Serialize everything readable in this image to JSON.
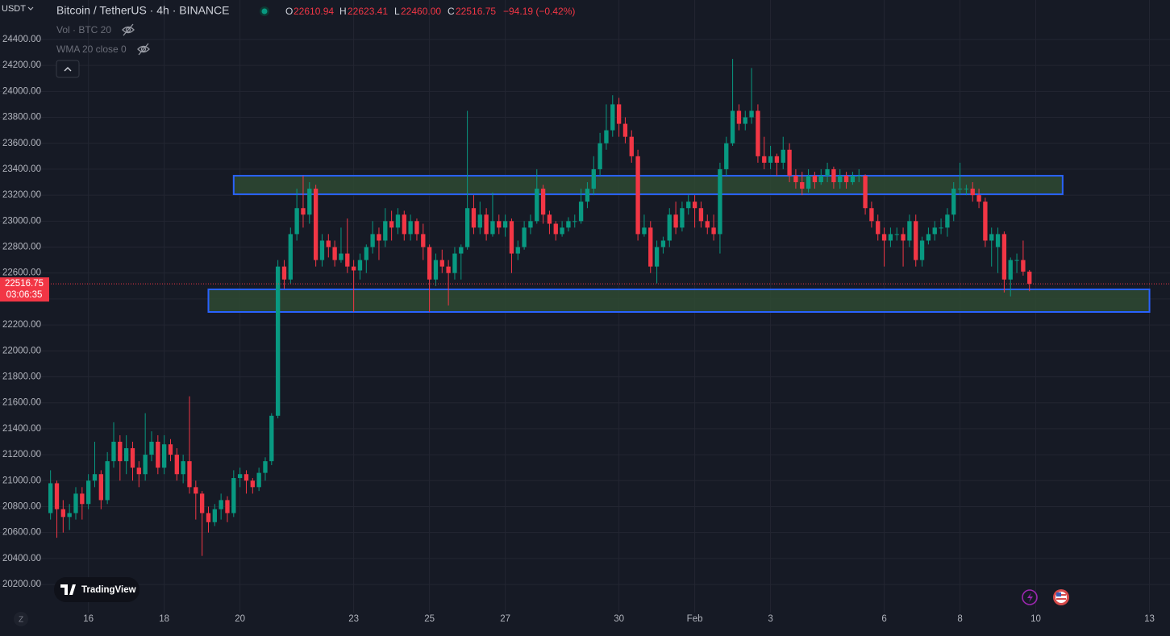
{
  "chart_data": {
    "type": "candlestick",
    "title": "Bitcoin / TetherUS · 4h · BINANCE",
    "symbol_menu": "USDT",
    "ohlc_header": [
      {
        "label": "O",
        "value": "22610.94"
      },
      {
        "label": "H",
        "value": "22623.41"
      },
      {
        "label": "L",
        "value": "22460.00"
      },
      {
        "label": "C",
        "value": "22516.75"
      }
    ],
    "change": "−94.19 (−0.42%)",
    "indicators": [
      "Vol · BTC 20",
      "WMA 20 close 0"
    ],
    "last_price_label": "22516.75",
    "countdown": "03:06:35",
    "watermark": "TradingView",
    "axis_button": "Z",
    "up_color": "#089981",
    "down_color": "#f23645",
    "zone_fill": "#2e4a32",
    "zone_stroke": "#2962ff",
    "grid": true,
    "xlim": [
      304,
      1045
    ],
    "ylim": [
      19983,
      24704
    ],
    "xticks": [
      {
        "value": 360,
        "label": "16"
      },
      {
        "value": 408,
        "label": "18"
      },
      {
        "value": 456,
        "label": "20"
      },
      {
        "value": 528,
        "label": "23"
      },
      {
        "value": 576,
        "label": "25"
      },
      {
        "value": 624,
        "label": "27"
      },
      {
        "value": 696,
        "label": "30"
      },
      {
        "value": 744,
        "label": "Feb"
      },
      {
        "value": 792,
        "label": "3"
      },
      {
        "value": 864,
        "label": "6"
      },
      {
        "value": 912,
        "label": "8"
      },
      {
        "value": 960,
        "label": "10"
      },
      {
        "value": 1032,
        "label": "13"
      }
    ],
    "yticks": [
      {
        "value": 20200,
        "label": "20200.00"
      },
      {
        "value": 20400,
        "label": "20400.00"
      },
      {
        "value": 20600,
        "label": "20600.00"
      },
      {
        "value": 20800,
        "label": "20800.00"
      },
      {
        "value": 21000,
        "label": "21000.00"
      },
      {
        "value": 21200,
        "label": "21200.00"
      },
      {
        "value": 21400,
        "label": "21400.00"
      },
      {
        "value": 21600,
        "label": "21600.00"
      },
      {
        "value": 21800,
        "label": "21800.00"
      },
      {
        "value": 22000,
        "label": "22000.00"
      },
      {
        "value": 22200,
        "label": "22200.00"
      },
      {
        "value": 22400,
        "label": "22400.00"
      },
      {
        "value": 22600,
        "label": "22600.00"
      },
      {
        "value": 22800,
        "label": "22800.00"
      },
      {
        "value": 23000,
        "label": "23000.00"
      },
      {
        "value": 23200,
        "label": "23200.00"
      },
      {
        "value": 23400,
        "label": "23400.00"
      },
      {
        "value": 23600,
        "label": "23600.00"
      },
      {
        "value": 23800,
        "label": "23800.00"
      },
      {
        "value": 24000,
        "label": "24000.00"
      },
      {
        "value": 24200,
        "label": "24200.00"
      },
      {
        "value": 24400,
        "label": "24400.00"
      }
    ],
    "zones": [
      {
        "x": [
          452,
          977
        ],
        "y": [
          23207,
          23350
        ]
      },
      {
        "x": [
          436,
          1032
        ],
        "y": [
          22300,
          22474
        ]
      }
    ],
    "x": [
      336,
      340,
      344,
      348,
      352,
      356,
      360,
      364,
      368,
      372,
      376,
      380,
      384,
      388,
      392,
      396,
      400,
      404,
      408,
      412,
      416,
      420,
      424,
      428,
      432,
      436,
      440,
      444,
      448,
      452,
      456,
      460,
      464,
      468,
      472,
      476,
      480,
      484,
      488,
      492,
      496,
      500,
      504,
      508,
      512,
      516,
      520,
      524,
      528,
      532,
      536,
      540,
      544,
      548,
      552,
      556,
      560,
      564,
      568,
      572,
      576,
      580,
      584,
      588,
      592,
      596,
      600,
      604,
      608,
      612,
      616,
      620,
      624,
      628,
      632,
      636,
      640,
      644,
      648,
      652,
      656,
      660,
      664,
      668,
      672,
      676,
      680,
      684,
      688,
      692,
      696,
      700,
      704,
      708,
      712,
      716,
      720,
      724,
      728,
      732,
      736,
      740,
      744,
      748,
      752,
      756,
      760,
      764,
      768,
      772,
      776,
      780,
      784,
      788,
      792,
      796,
      800,
      804,
      808,
      812,
      816,
      820,
      824,
      828,
      832,
      836,
      840,
      844,
      848,
      852,
      856,
      860,
      864,
      868,
      872,
      876,
      880,
      884,
      888,
      892,
      896,
      900,
      904,
      908,
      912,
      916,
      920,
      924,
      928,
      932,
      936,
      940,
      944,
      948,
      952,
      956
    ],
    "ohlc": [
      [
        20750,
        21080,
        20700,
        20980
      ],
      [
        20980,
        21000,
        20560,
        20780
      ],
      [
        20780,
        20850,
        20600,
        20720
      ],
      [
        20720,
        20820,
        20620,
        20750
      ],
      [
        20750,
        20950,
        20700,
        20900
      ],
      [
        20900,
        20950,
        20700,
        20820
      ],
      [
        20820,
        21050,
        20780,
        21000
      ],
      [
        21000,
        21300,
        20950,
        21050
      ],
      [
        21050,
        21080,
        20780,
        20850
      ],
      [
        20850,
        21220,
        20820,
        21150
      ],
      [
        21150,
        21450,
        21100,
        21300
      ],
      [
        21300,
        21350,
        21000,
        21150
      ],
      [
        21150,
        21350,
        21050,
        21250
      ],
      [
        21250,
        21300,
        21000,
        21100
      ],
      [
        21100,
        21150,
        20950,
        21050
      ],
      [
        21050,
        21520,
        21000,
        21200
      ],
      [
        21200,
        21380,
        21150,
        21300
      ],
      [
        21300,
        21350,
        21050,
        21100
      ],
      [
        21100,
        21350,
        21050,
        21280
      ],
      [
        21280,
        21320,
        21150,
        21200
      ],
      [
        21200,
        21250,
        21000,
        21050
      ],
      [
        21050,
        21200,
        20980,
        21150
      ],
      [
        21150,
        21650,
        20900,
        20950
      ],
      [
        20950,
        21000,
        20700,
        20900
      ],
      [
        20900,
        20920,
        20420,
        20750
      ],
      [
        20750,
        20800,
        20600,
        20680
      ],
      [
        20680,
        20820,
        20650,
        20780
      ],
      [
        20780,
        20900,
        20700,
        20850
      ],
      [
        20850,
        20880,
        20680,
        20750
      ],
      [
        20750,
        21080,
        20720,
        21020
      ],
      [
        21020,
        21100,
        20950,
        21050
      ],
      [
        21050,
        21080,
        20900,
        21000
      ],
      [
        21000,
        21020,
        20900,
        20950
      ],
      [
        20950,
        21100,
        20920,
        21060
      ],
      [
        21060,
        21180,
        21000,
        21150
      ],
      [
        21150,
        21520,
        21120,
        21500
      ],
      [
        21500,
        22700,
        21480,
        22650
      ],
      [
        22650,
        22700,
        22480,
        22550
      ],
      [
        22550,
        22950,
        22520,
        22900
      ],
      [
        22900,
        23250,
        22850,
        23100
      ],
      [
        23100,
        23350,
        22950,
        23050
      ],
      [
        23050,
        23300,
        22980,
        23250
      ],
      [
        23250,
        23280,
        22650,
        22700
      ],
      [
        22700,
        22900,
        22650,
        22850
      ],
      [
        22850,
        22900,
        22720,
        22800
      ],
      [
        22800,
        22850,
        22650,
        22700
      ],
      [
        22700,
        22950,
        22680,
        22750
      ],
      [
        22750,
        23020,
        22600,
        22650
      ],
      [
        22650,
        22700,
        22300,
        22620
      ],
      [
        22620,
        22750,
        22550,
        22700
      ],
      [
        22700,
        22820,
        22600,
        22800
      ],
      [
        22800,
        23000,
        22750,
        22900
      ],
      [
        22900,
        22950,
        22700,
        22850
      ],
      [
        22850,
        23100,
        22800,
        23000
      ],
      [
        23000,
        23080,
        22850,
        22950
      ],
      [
        22950,
        23100,
        22900,
        23050
      ],
      [
        23050,
        23080,
        22850,
        22900
      ],
      [
        22900,
        23050,
        22850,
        23000
      ],
      [
        23000,
        23020,
        22850,
        22900
      ],
      [
        22900,
        22980,
        22700,
        22800
      ],
      [
        22800,
        22820,
        22300,
        22550
      ],
      [
        22550,
        22750,
        22500,
        22700
      ],
      [
        22700,
        22780,
        22600,
        22650
      ],
      [
        22650,
        22700,
        22350,
        22600
      ],
      [
        22600,
        22800,
        22550,
        22750
      ],
      [
        22750,
        22820,
        22550,
        22800
      ],
      [
        22800,
        23850,
        22780,
        23100
      ],
      [
        23100,
        23200,
        22900,
        22950
      ],
      [
        22950,
        23150,
        22900,
        23050
      ],
      [
        23050,
        23100,
        22850,
        22900
      ],
      [
        22900,
        23220,
        22880,
        23000
      ],
      [
        23000,
        23050,
        22900,
        22950
      ],
      [
        22950,
        23050,
        22880,
        23000
      ],
      [
        23000,
        23020,
        22600,
        22750
      ],
      [
        22750,
        22850,
        22700,
        22800
      ],
      [
        22800,
        23000,
        22780,
        22950
      ],
      [
        22950,
        23050,
        22900,
        23000
      ],
      [
        23000,
        23400,
        22980,
        23250
      ],
      [
        23250,
        23280,
        22980,
        23050
      ],
      [
        23050,
        23080,
        22900,
        22980
      ],
      [
        22980,
        23000,
        22850,
        22900
      ],
      [
        22900,
        23000,
        22880,
        22950
      ],
      [
        22950,
        23030,
        22920,
        23000
      ],
      [
        23000,
        23050,
        22950,
        23000
      ],
      [
        23000,
        23250,
        22980,
        23150
      ],
      [
        23150,
        23300,
        23100,
        23250
      ],
      [
        23250,
        23500,
        23200,
        23400
      ],
      [
        23400,
        23680,
        23350,
        23600
      ],
      [
        23600,
        23900,
        23550,
        23700
      ],
      [
        23700,
        23970,
        23650,
        23900
      ],
      [
        23900,
        23950,
        23650,
        23750
      ],
      [
        23750,
        23800,
        23600,
        23650
      ],
      [
        23650,
        23700,
        23450,
        23500
      ],
      [
        23500,
        23550,
        22850,
        22900
      ],
      [
        22900,
        23050,
        22880,
        22950
      ],
      [
        22950,
        23000,
        22600,
        22650
      ],
      [
        22650,
        22850,
        22520,
        22800
      ],
      [
        22800,
        22880,
        22750,
        22850
      ],
      [
        22850,
        23100,
        22800,
        23050
      ],
      [
        23050,
        23150,
        22900,
        22950
      ],
      [
        22950,
        23150,
        22920,
        23100
      ],
      [
        23100,
        23200,
        23050,
        23150
      ],
      [
        23150,
        23200,
        22950,
        23100
      ],
      [
        23100,
        23150,
        22950,
        23000
      ],
      [
        23000,
        23050,
        22900,
        22950
      ],
      [
        22950,
        23050,
        22850,
        22900
      ],
      [
        22900,
        23450,
        22750,
        23400
      ],
      [
        23400,
        23650,
        23350,
        23600
      ],
      [
        23600,
        24250,
        23580,
        23850
      ],
      [
        23850,
        23900,
        23700,
        23750
      ],
      [
        23750,
        23850,
        23700,
        23800
      ],
      [
        23800,
        24180,
        23750,
        23850
      ],
      [
        23850,
        23900,
        23450,
        23500
      ],
      [
        23500,
        23650,
        23400,
        23450
      ],
      [
        23450,
        23580,
        23400,
        23500
      ],
      [
        23500,
        23520,
        23350,
        23450
      ],
      [
        23450,
        23650,
        23400,
        23550
      ],
      [
        23550,
        23600,
        23300,
        23350
      ],
      [
        23350,
        23400,
        23250,
        23300
      ],
      [
        23300,
        23380,
        23200,
        23250
      ],
      [
        23250,
        23400,
        23220,
        23350
      ],
      [
        23350,
        23380,
        23250,
        23300
      ],
      [
        23300,
        23400,
        23280,
        23350
      ],
      [
        23350,
        23450,
        23300,
        23400
      ],
      [
        23400,
        23420,
        23250,
        23300
      ],
      [
        23300,
        23400,
        23250,
        23350
      ],
      [
        23350,
        23380,
        23250,
        23300
      ],
      [
        23300,
        23380,
        23280,
        23350
      ],
      [
        23350,
        23400,
        23300,
        23350
      ],
      [
        23350,
        23360,
        23050,
        23100
      ],
      [
        23100,
        23150,
        22950,
        23000
      ],
      [
        23000,
        23050,
        22850,
        22900
      ],
      [
        22900,
        22950,
        22650,
        22850
      ],
      [
        22850,
        22950,
        22800,
        22900
      ],
      [
        22900,
        22950,
        22850,
        22900
      ],
      [
        22900,
        22950,
        22650,
        22850
      ],
      [
        22850,
        23050,
        22800,
        23000
      ],
      [
        23000,
        23050,
        22650,
        22700
      ],
      [
        22700,
        22880,
        22650,
        22850
      ],
      [
        22850,
        22950,
        22820,
        22900
      ],
      [
        22900,
        23000,
        22850,
        22950
      ],
      [
        22950,
        23020,
        22900,
        22950
      ],
      [
        22950,
        23100,
        22880,
        23050
      ],
      [
        23050,
        23300,
        23000,
        23250
      ],
      [
        23250,
        23450,
        23200,
        23250
      ],
      [
        23250,
        23280,
        23200,
        23250
      ],
      [
        23250,
        23300,
        23150,
        23200
      ],
      [
        23200,
        23250,
        23100,
        23150
      ],
      [
        23150,
        23180,
        22800,
        22850
      ],
      [
        22850,
        22950,
        22650,
        22900
      ],
      [
        22800,
        22950,
        22600,
        22900
      ],
      [
        22900,
        22920,
        22450,
        22550
      ],
      [
        22550,
        22720,
        22420,
        22700
      ],
      [
        22700,
        22750,
        22600,
        22700
      ],
      [
        22700,
        22850,
        22580,
        22610.94
      ],
      [
        22610.94,
        22623.41,
        22460,
        22516.75
      ]
    ]
  }
}
